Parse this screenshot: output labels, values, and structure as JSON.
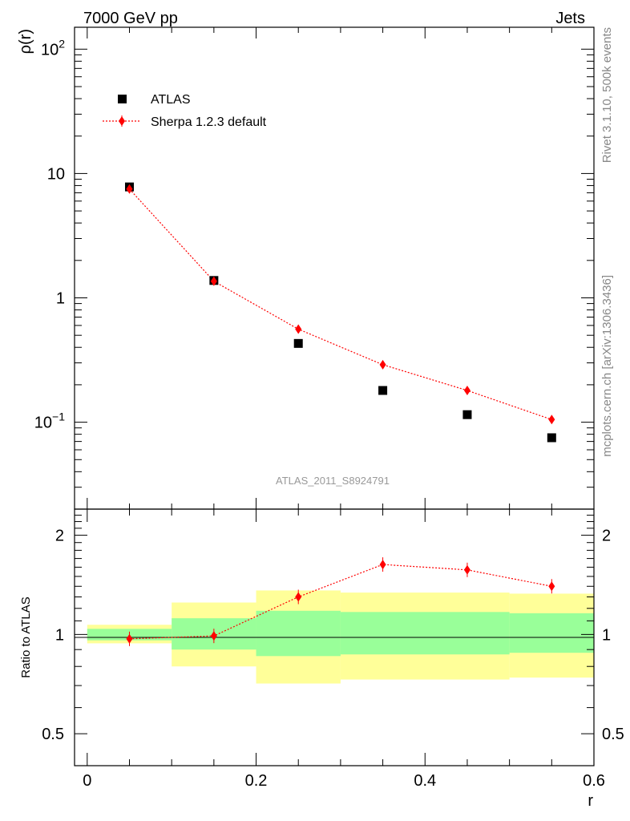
{
  "header": {
    "left": "7000 GeV pp",
    "right": "Jets"
  },
  "side_text": {
    "rivet": "Rivet 3.1.10,  500k events",
    "mcplots": "mcplots.cern.ch [arXiv:1306.3436]"
  },
  "analysis_id": "ATLAS_2011_S8924791",
  "chart_data": [
    {
      "type": "scatter",
      "panel": "main",
      "ylabel": "ρ(r)",
      "yscale": "log",
      "ylim": [
        0.02,
        150
      ],
      "xlim": [
        -0.015,
        0.6
      ],
      "y_tick_labels": [
        {
          "value": 0.1,
          "base": "10",
          "exp": "−1"
        },
        {
          "value": 1,
          "base": "1",
          "exp": ""
        },
        {
          "value": 10,
          "base": "10",
          "exp": ""
        },
        {
          "value": 100,
          "base": "10",
          "exp": "2"
        }
      ],
      "legend_position": "top-left",
      "series": [
        {
          "name": "ATLAS",
          "color": "#000000",
          "marker": "square",
          "x": [
            0.05,
            0.15,
            0.25,
            0.35,
            0.45,
            0.55
          ],
          "y": [
            7.8,
            1.38,
            0.43,
            0.18,
            0.115,
            0.075
          ]
        },
        {
          "name": "Sherpa 1.2.3 default",
          "color": "#ff0000",
          "marker": "diamond",
          "line": "dotted",
          "x": [
            0.05,
            0.15,
            0.25,
            0.35,
            0.45,
            0.55
          ],
          "y": [
            7.5,
            1.36,
            0.56,
            0.29,
            0.18,
            0.105
          ]
        }
      ]
    },
    {
      "type": "line",
      "panel": "ratio",
      "ylabel": "Ratio to ATLAS",
      "xlabel": "r",
      "yscale": "log",
      "ylim": [
        0.4,
        2.4
      ],
      "xlim": [
        -0.015,
        0.6
      ],
      "x_ticks": [
        0,
        0.2,
        0.4,
        0.6
      ],
      "x_tick_labels": [
        "0",
        "0.2",
        "0.4",
        "0.6"
      ],
      "y_ticks": [
        0.5,
        1,
        2
      ],
      "y_tick_labels": [
        "0.5",
        "1",
        "2"
      ],
      "bands": {
        "bins": [
          [
            0,
            0.1
          ],
          [
            0.1,
            0.2
          ],
          [
            0.2,
            0.3
          ],
          [
            0.3,
            0.5
          ],
          [
            0.5,
            0.6
          ]
        ],
        "stat": {
          "color": "#99ff99",
          "lo": [
            0.96,
            0.9,
            0.86,
            0.87,
            0.88
          ],
          "hi": [
            1.04,
            1.12,
            1.18,
            1.17,
            1.16
          ]
        },
        "total": {
          "color": "#ffff99",
          "lo": [
            0.94,
            0.8,
            0.71,
            0.73,
            0.74
          ],
          "hi": [
            1.07,
            1.25,
            1.36,
            1.34,
            1.33
          ]
        }
      },
      "series": [
        {
          "name": "Sherpa 1.2.3 default",
          "color": "#ff0000",
          "marker": "diamond",
          "line": "dotted",
          "x": [
            0.05,
            0.15,
            0.25,
            0.35,
            0.45,
            0.55
          ],
          "y": [
            0.97,
            0.99,
            1.3,
            1.63,
            1.57,
            1.4
          ]
        }
      ]
    }
  ]
}
